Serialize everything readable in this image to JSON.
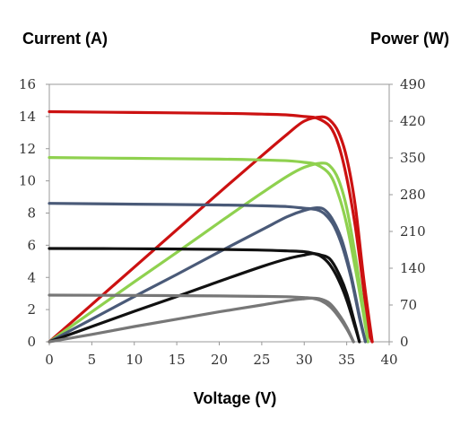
{
  "chart_data": {
    "type": "line",
    "title": "",
    "xlabel": "Voltage (V)",
    "ylabel_left": "Current (A)",
    "ylabel_right": "Power (W)",
    "xlim": [
      0,
      40
    ],
    "ylim_left": [
      0,
      16
    ],
    "ylim_right": [
      0,
      490
    ],
    "x_ticks": [
      0,
      5,
      10,
      15,
      20,
      25,
      30,
      35,
      40
    ],
    "y_left_ticks": [
      0,
      2,
      4,
      6,
      8,
      10,
      12,
      14,
      16
    ],
    "y_right_ticks": [
      0,
      70,
      140,
      210,
      280,
      350,
      420,
      490
    ],
    "grid": false,
    "legend": "none",
    "colors": [
      "#cc1111",
      "#8fd14f",
      "#4a5a78",
      "#111111",
      "#777777"
    ],
    "series": [
      {
        "axis": "left",
        "color": "#cc1111",
        "x": [
          0,
          10,
          20,
          25,
          28,
          30,
          31.5,
          33,
          34,
          35,
          36,
          37,
          37.5,
          38
        ],
        "y": [
          14.3,
          14.25,
          14.2,
          14.15,
          14.1,
          14.0,
          13.9,
          13.4,
          12.3,
          10.2,
          7.2,
          3.2,
          0.8,
          0
        ]
      },
      {
        "axis": "right",
        "color": "#cc1111",
        "x": [
          0,
          5,
          10,
          15,
          20,
          25,
          28,
          30,
          32,
          33,
          34,
          35,
          36,
          37,
          38
        ],
        "y": [
          0,
          71,
          142,
          213,
          284,
          354,
          395,
          420,
          428,
          422,
          400,
          350,
          260,
          120,
          0
        ]
      },
      {
        "axis": "left",
        "color": "#8fd14f",
        "x": [
          0,
          10,
          20,
          25,
          28,
          30,
          31.5,
          33,
          34,
          35,
          36,
          37,
          37.5
        ],
        "y": [
          11.45,
          11.4,
          11.35,
          11.3,
          11.25,
          11.15,
          11.0,
          10.4,
          9.2,
          7.3,
          4.6,
          1.6,
          0
        ]
      },
      {
        "axis": "right",
        "color": "#8fd14f",
        "x": [
          0,
          5,
          10,
          15,
          20,
          25,
          28,
          30,
          32,
          33,
          34,
          35,
          36,
          37,
          37.5
        ],
        "y": [
          0,
          57,
          114,
          170,
          227,
          283,
          315,
          332,
          340,
          335,
          310,
          255,
          165,
          60,
          0
        ]
      },
      {
        "axis": "left",
        "color": "#4a5a78",
        "x": [
          0,
          10,
          20,
          25,
          28,
          30,
          31.5,
          32.5,
          33.5,
          34.5,
          35.5,
          36.5,
          37.2
        ],
        "y": [
          8.6,
          8.55,
          8.5,
          8.45,
          8.4,
          8.3,
          8.2,
          7.9,
          7.2,
          5.9,
          4.0,
          1.5,
          0
        ]
      },
      {
        "axis": "right",
        "color": "#4a5a78",
        "x": [
          0,
          5,
          10,
          15,
          20,
          25,
          28,
          30,
          31.5,
          32.5,
          33.5,
          34.5,
          35.5,
          36.5,
          37.2
        ],
        "y": [
          0,
          43,
          86,
          128,
          171,
          213,
          238,
          250,
          255,
          250,
          228,
          190,
          128,
          50,
          0
        ]
      },
      {
        "axis": "left",
        "color": "#111111",
        "x": [
          0,
          10,
          20,
          25,
          28,
          30,
          31,
          32,
          33,
          34,
          35,
          36,
          36.5
        ],
        "y": [
          5.8,
          5.78,
          5.74,
          5.7,
          5.65,
          5.6,
          5.5,
          5.3,
          4.8,
          3.9,
          2.6,
          0.9,
          0
        ]
      },
      {
        "axis": "right",
        "color": "#111111",
        "x": [
          0,
          5,
          10,
          15,
          20,
          25,
          28,
          30,
          31,
          32,
          33,
          34,
          35,
          36,
          36.5
        ],
        "y": [
          0,
          29,
          58,
          86,
          115,
          143,
          158,
          165,
          168,
          165,
          158,
          132,
          92,
          32,
          0
        ]
      },
      {
        "axis": "left",
        "color": "#777777",
        "x": [
          0,
          10,
          20,
          25,
          28,
          30,
          31,
          32,
          33,
          34,
          35,
          35.8
        ],
        "y": [
          2.9,
          2.88,
          2.85,
          2.82,
          2.8,
          2.75,
          2.7,
          2.55,
          2.2,
          1.6,
          0.8,
          0
        ]
      },
      {
        "axis": "right",
        "color": "#777777",
        "x": [
          0,
          5,
          10,
          15,
          20,
          25,
          28,
          30,
          31,
          32,
          33,
          34,
          35,
          35.8
        ],
        "y": [
          0,
          14,
          29,
          43,
          57,
          70,
          78,
          82,
          83,
          81,
          73,
          54,
          28,
          0
        ]
      }
    ]
  }
}
